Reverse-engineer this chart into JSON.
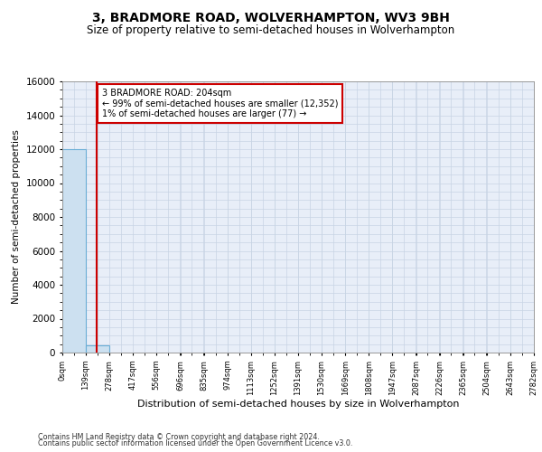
{
  "title": "3, BRADMORE ROAD, WOLVERHAMPTON, WV3 9BH",
  "subtitle": "Size of property relative to semi-detached houses in Wolverhampton",
  "xlabel": "Distribution of semi-detached houses by size in Wolverhampton",
  "ylabel": "Number of semi-detached properties",
  "footer_line1": "Contains HM Land Registry data © Crown copyright and database right 2024.",
  "footer_line2": "Contains public sector information licensed under the Open Government Licence v3.0.",
  "bar_edges": [
    0,
    139,
    278,
    417,
    556,
    696,
    835,
    974,
    1113,
    1252,
    1391,
    1530,
    1669,
    1808,
    1947,
    2087,
    2226,
    2365,
    2504,
    2643,
    2782
  ],
  "bar_heights": [
    12000,
    450,
    0,
    0,
    0,
    0,
    0,
    0,
    0,
    0,
    0,
    0,
    0,
    0,
    0,
    0,
    0,
    0,
    0,
    0
  ],
  "bar_color": "#cce0f0",
  "bar_edge_color": "#6aaed6",
  "property_line_x": 204,
  "property_line_color": "#cc0000",
  "annotation_text": "3 BRADMORE ROAD: 204sqm\n← 99% of semi-detached houses are smaller (12,352)\n1% of semi-detached houses are larger (77) →",
  "annotation_box_color": "#cc0000",
  "ylim": [
    0,
    16000
  ],
  "yticks": [
    0,
    2000,
    4000,
    6000,
    8000,
    10000,
    12000,
    14000,
    16000
  ],
  "grid_color": "#c8d4e4",
  "bg_color": "#e8eef8",
  "title_fontsize": 10,
  "subtitle_fontsize": 8.5,
  "xlim_min": 0,
  "xlim_max": 2782
}
